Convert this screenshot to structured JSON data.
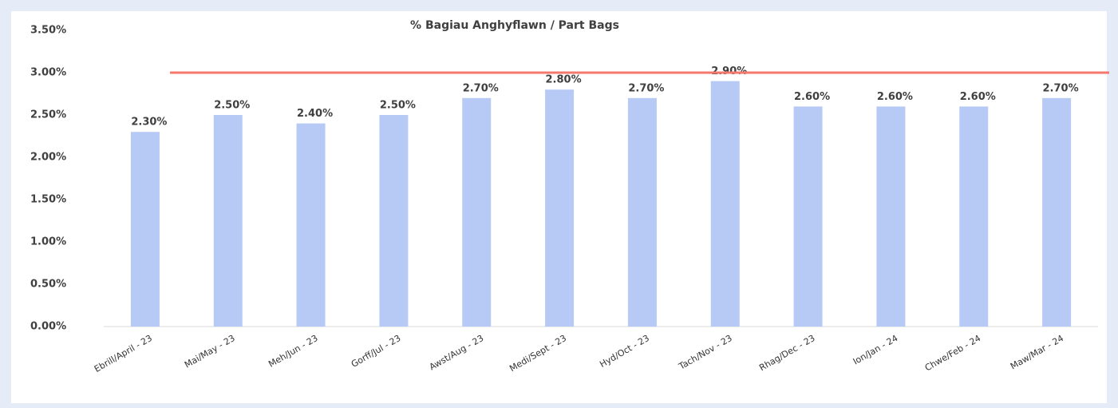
{
  "chart_data": {
    "type": "bar",
    "title": "% Bagiau Anghyflawn / Part Bags",
    "categories": [
      "Ebrill/April - 23",
      "Mai/May - 23",
      "Meh/Jun - 23",
      "Gorff/Jul - 23",
      "Awst/Aug - 23",
      "Medi/Sept - 23",
      "Hyd/Oct - 23",
      "Tach/Nov - 23",
      "Rhag/Dec - 23",
      "Ion/Jan - 24",
      "Chwe/Feb - 24",
      "Maw/Mar - 24"
    ],
    "values": [
      2.3,
      2.5,
      2.4,
      2.5,
      2.7,
      2.8,
      2.7,
      2.9,
      2.6,
      2.6,
      2.6,
      2.7
    ],
    "value_labels": [
      "2.30%",
      "2.50%",
      "2.40%",
      "2.50%",
      "2.70%",
      "2.80%",
      "2.70%",
      "2.90%",
      "2.60%",
      "2.60%",
      "2.60%",
      "2.70%"
    ],
    "color": "#b7c9f5",
    "ylim": [
      0,
      3.5
    ],
    "yticks": [
      {
        "value": 0,
        "label": "0.00%"
      },
      {
        "value": 0.5,
        "label": "0.50%"
      },
      {
        "value": 1,
        "label": "1.00%"
      },
      {
        "value": 1.5,
        "label": "1.50%"
      },
      {
        "value": 2,
        "label": "2.00%"
      },
      {
        "value": 2.5,
        "label": "2.50%"
      },
      {
        "value": 3,
        "label": "3.00%"
      },
      {
        "value": 3.5,
        "label": "3.50%"
      }
    ],
    "grid": false,
    "reference_line": {
      "value": 3,
      "color": "#f4786c"
    }
  }
}
